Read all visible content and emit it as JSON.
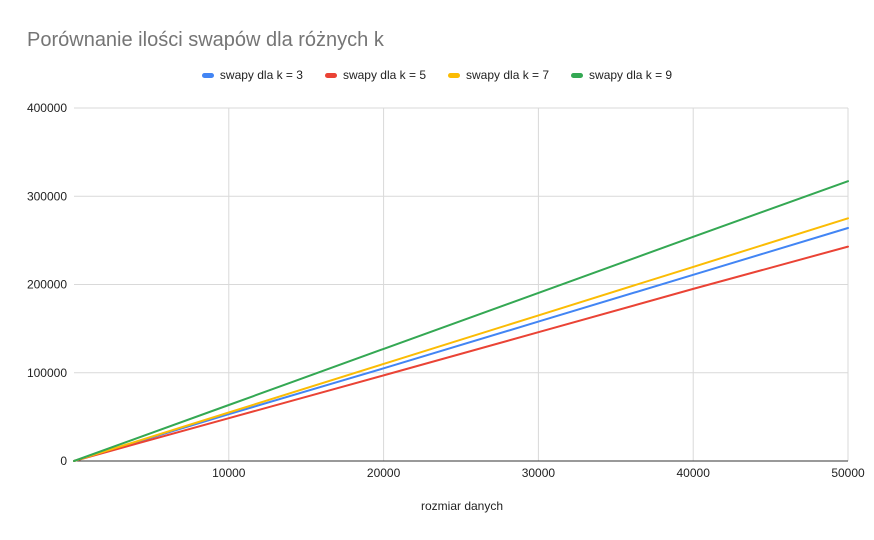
{
  "chart_data": {
    "type": "line",
    "title": "Porównanie ilości swapów dla różnych k",
    "xlabel": "rozmiar danych",
    "ylabel": "",
    "xlim": [
      0,
      50000
    ],
    "ylim": [
      0,
      400000
    ],
    "x_ticks": [
      10000,
      20000,
      30000,
      40000,
      50000
    ],
    "x_tick_labels": [
      "10000",
      "20000",
      "30000",
      "40000",
      "50000"
    ],
    "y_ticks": [
      0,
      100000,
      200000,
      300000,
      400000
    ],
    "y_tick_labels": [
      "0",
      "100000",
      "200000",
      "300000",
      "400000"
    ],
    "grid": true,
    "legend_position": "top",
    "x": [
      0,
      10000,
      20000,
      30000,
      40000,
      50000
    ],
    "series": [
      {
        "name": "swapy dla k = 3",
        "color": "#4285F4",
        "values": [
          0,
          53000,
          105000,
          158000,
          211000,
          264000
        ]
      },
      {
        "name": "swapy dla k = 5",
        "color": "#EA4335",
        "values": [
          0,
          48500,
          97000,
          146000,
          195000,
          243000
        ]
      },
      {
        "name": "swapy dla k = 7",
        "color": "#FBBC04",
        "values": [
          0,
          55000,
          110000,
          165000,
          220000,
          275000
        ]
      },
      {
        "name": "swapy dla k = 9",
        "color": "#34A853",
        "values": [
          0,
          63500,
          127000,
          190500,
          254000,
          317000
        ]
      }
    ]
  }
}
